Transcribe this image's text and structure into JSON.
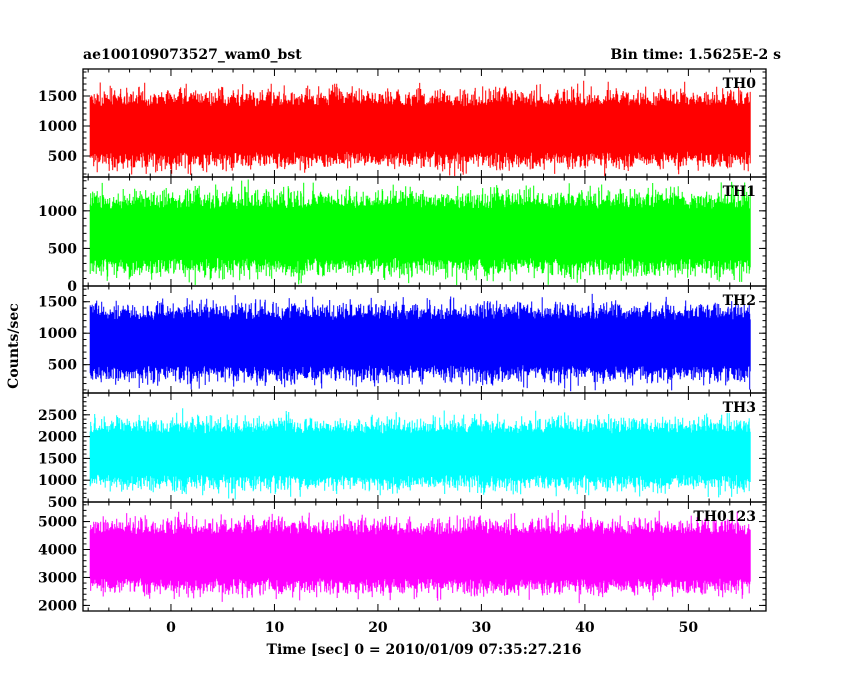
{
  "header": {
    "left_title": "ae100109073527_wam0_bst",
    "right_title": "Bin time: 1.5625E-2 s"
  },
  "chart_data": {
    "type": "line",
    "subtype": "stacked-light-curve-panels",
    "xlabel": "Time [sec] 0 = 2010/01/09 07:35:27.216",
    "ylabel": "Counts/sec",
    "xlim": [
      -8.5,
      57.5
    ],
    "data_x_range": [
      -7.8,
      56.0
    ],
    "x_ticks": [
      0,
      10,
      20,
      30,
      40,
      50
    ],
    "x_tick_labels": [
      "0",
      "10",
      "20",
      "30",
      "40",
      "50"
    ],
    "bin_time_s": 0.015625,
    "panels": [
      {
        "name": "TH0",
        "color": "#ff0000",
        "ylim": [
          150,
          1950
        ],
        "y_ticks": [
          500,
          1000,
          1500
        ],
        "y_tick_labels": [
          "500",
          "1000",
          "1500"
        ],
        "typical_min": 250,
        "typical_max": 1600,
        "mean": 950
      },
      {
        "name": "TH1",
        "color": "#00ff00",
        "ylim": [
          0,
          1450
        ],
        "y_ticks": [
          0,
          500,
          1000
        ],
        "y_tick_labels": [
          "0",
          "500",
          "1000"
        ],
        "typical_min": 80,
        "typical_max": 1250,
        "mean": 700
      },
      {
        "name": "TH2",
        "color": "#0000ff",
        "ylim": [
          50,
          1750
        ],
        "y_ticks": [
          500,
          1000,
          1500
        ],
        "y_tick_labels": [
          "500",
          "1000",
          "1500"
        ],
        "typical_min": 200,
        "typical_max": 1500,
        "mean": 850
      },
      {
        "name": "TH3",
        "color": "#00ffff",
        "ylim": [
          500,
          3000
        ],
        "y_ticks": [
          500,
          1000,
          1500,
          2000,
          2500
        ],
        "y_tick_labels": [
          "500",
          "1000",
          "1500",
          "2000",
          "2500"
        ],
        "typical_min": 800,
        "typical_max": 2500,
        "mean": 1600
      },
      {
        "name": "TH0123",
        "color": "#ff00ff",
        "ylim": [
          1800,
          5700
        ],
        "y_ticks": [
          2000,
          3000,
          4000,
          5000
        ],
        "y_tick_labels": [
          "2000",
          "3000",
          "4000",
          "5000"
        ],
        "typical_min": 2400,
        "typical_max": 5200,
        "mean": 3750
      }
    ]
  }
}
